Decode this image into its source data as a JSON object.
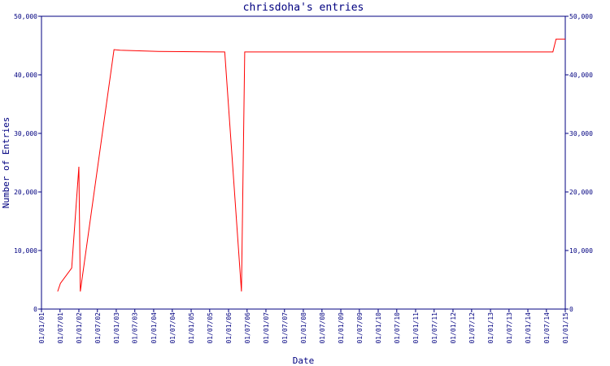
{
  "chart_data": {
    "type": "line",
    "title": "chrisdoha's entries",
    "x_label": "Date",
    "y_label": "Number of Entries",
    "x": [
      "2001-06-08",
      "2001-07-05",
      "2001-10-23",
      "2002-01-01",
      "2002-01-15",
      "2002-12-10",
      "2003-02-08",
      "2004-02-17",
      "2005-11-25",
      "2006-05-07",
      "2006-06-08",
      "2014-09-02",
      "2014-10-03",
      "2015-01-01"
    ],
    "series": [
      {
        "name": "entries",
        "color": "#ff0000",
        "values": [
          3000,
          4400,
          7000,
          24300,
          3000,
          44300,
          44200,
          44000,
          43900,
          3000,
          43900,
          43900,
          46100,
          46100
        ]
      }
    ],
    "xlim": [
      "2001-01-01",
      "2015-01-01"
    ],
    "xticks": [
      {
        "value": "2001-01-01",
        "label": "01/01/01"
      },
      {
        "value": "2001-07-01",
        "label": "01/07/01"
      },
      {
        "value": "2002-01-01",
        "label": "01/01/02"
      },
      {
        "value": "2002-07-01",
        "label": "01/07/02"
      },
      {
        "value": "2003-01-01",
        "label": "01/01/03"
      },
      {
        "value": "2003-07-01",
        "label": "01/07/03"
      },
      {
        "value": "2004-01-01",
        "label": "01/01/04"
      },
      {
        "value": "2004-07-01",
        "label": "01/07/04"
      },
      {
        "value": "2005-01-01",
        "label": "01/01/05"
      },
      {
        "value": "2005-07-01",
        "label": "01/07/05"
      },
      {
        "value": "2006-01-01",
        "label": "01/01/06"
      },
      {
        "value": "2006-07-01",
        "label": "01/07/06"
      },
      {
        "value": "2007-01-01",
        "label": "01/01/07"
      },
      {
        "value": "2007-07-01",
        "label": "01/07/07"
      },
      {
        "value": "2008-01-01",
        "label": "01/01/08"
      },
      {
        "value": "2008-07-01",
        "label": "01/07/08"
      },
      {
        "value": "2009-01-01",
        "label": "01/01/09"
      },
      {
        "value": "2009-07-01",
        "label": "01/07/09"
      },
      {
        "value": "2010-01-01",
        "label": "01/01/10"
      },
      {
        "value": "2010-07-01",
        "label": "01/07/10"
      },
      {
        "value": "2011-01-01",
        "label": "01/01/11"
      },
      {
        "value": "2011-07-01",
        "label": "01/07/11"
      },
      {
        "value": "2012-01-01",
        "label": "01/01/12"
      },
      {
        "value": "2012-07-01",
        "label": "01/07/12"
      },
      {
        "value": "2013-01-01",
        "label": "01/01/13"
      },
      {
        "value": "2013-07-01",
        "label": "01/07/13"
      },
      {
        "value": "2014-01-01",
        "label": "01/01/14"
      },
      {
        "value": "2014-07-01",
        "label": "01/07/14"
      },
      {
        "value": "2015-01-01",
        "label": "01/01/15"
      }
    ],
    "ylim": [
      0,
      50000
    ],
    "yticks": [
      0,
      {
        "value": 10000,
        "label": "10,000"
      },
      {
        "value": 20000,
        "label": "20,000"
      },
      {
        "value": 30000,
        "label": "30,000"
      },
      {
        "value": 40000,
        "label": "40,000"
      },
      {
        "value": 50000,
        "label": "50,000"
      }
    ],
    "axis_color": "#000080",
    "grid": false
  }
}
